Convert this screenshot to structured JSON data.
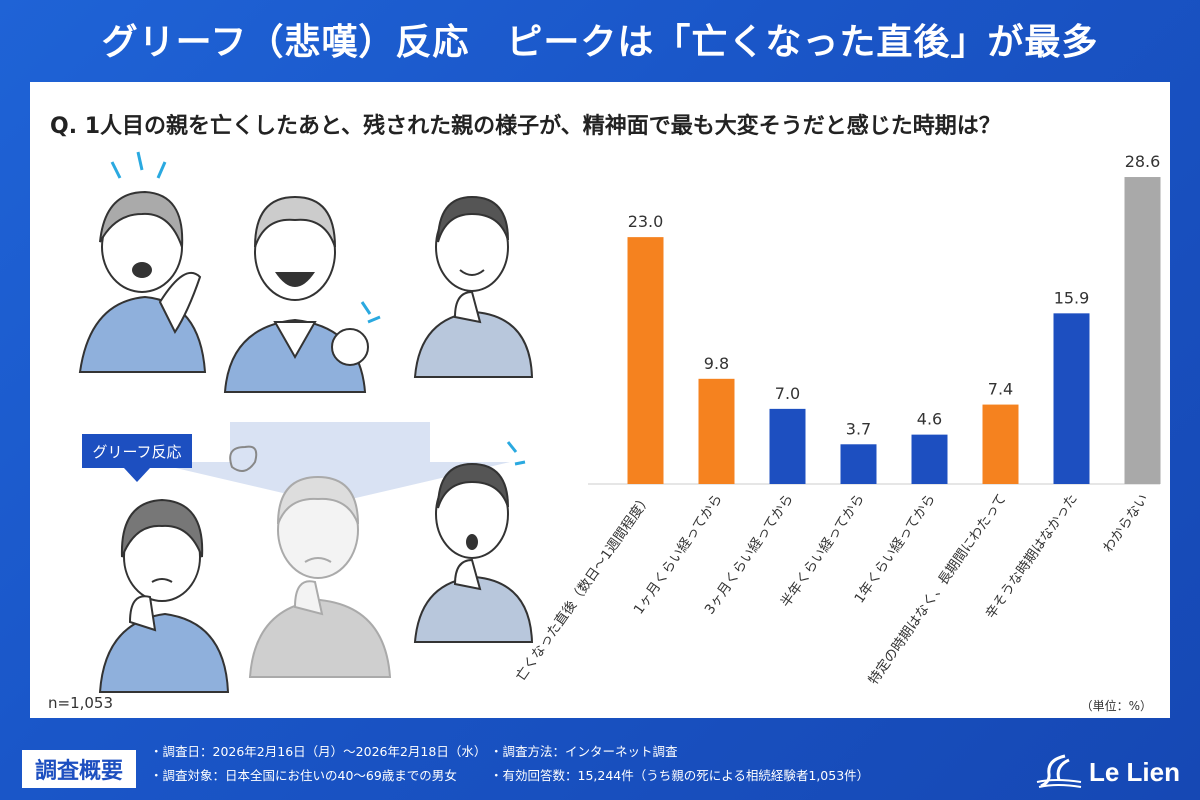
{
  "header": {
    "title": "グリーフ（悲嘆）反応　ピークは「亡くなった直後」が最多"
  },
  "question": "Q. 1人目の親を亡くしたあと、残された親の様子が、精神面で最も大変そうだと感じた時期は？",
  "illustration": {
    "tag_label": "グリーフ反応"
  },
  "sample_size": "n=1,053",
  "unit_label": "（単位：%）",
  "chart_data": {
    "type": "bar",
    "categories": [
      "亡くなった直後（数日～1週間程度）",
      "1ヶ月くらい経ってから",
      "3ヶ月くらい経ってから",
      "半年くらい経ってから",
      "1年くらい経ってから",
      "特定の時期はなく、長期間にわたって",
      "辛そうな時期はなかった",
      "わからない"
    ],
    "values": [
      23.0,
      9.8,
      7.0,
      3.7,
      4.6,
      7.4,
      15.9,
      28.6
    ],
    "value_labels": [
      "23.0",
      "9.8",
      "7.0",
      "3.7",
      "4.6",
      "7.4",
      "15.9",
      "28.6"
    ],
    "bar_colors": [
      "#f5821f",
      "#f5821f",
      "#1d4fc0",
      "#1d4fc0",
      "#1d4fc0",
      "#f5821f",
      "#1d4fc0",
      "#a9a9a9"
    ],
    "ylim": [
      0,
      30
    ],
    "grid": false,
    "legend": "none"
  },
  "footer": {
    "badge": "調査概要",
    "items_left": [
      "・調査日：2026年2月16日（月）～2026年2月18日（水）",
      "・調査対象：日本全国にお住いの40～69歳までの男女"
    ],
    "items_right": [
      "・調査方法：インターネット調査",
      "・有効回答数：15,244件（うち親の死による相続経験者1,053件）"
    ],
    "logo_text": "Le Lien"
  },
  "colors": {
    "accent_blue": "#1d4fc0",
    "accent_orange": "#f5821f",
    "neutral_gray": "#a9a9a9"
  }
}
